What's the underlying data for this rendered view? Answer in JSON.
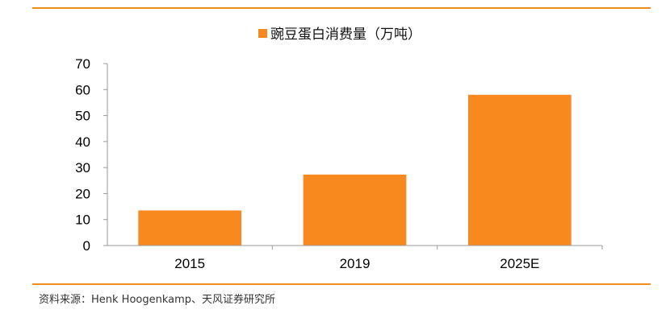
{
  "colors": {
    "accent": "#f28a1e",
    "bar": "#f7891f"
  },
  "source": "资料来源：Henk Hoogenkamp、天风证券研究所",
  "chart_data": {
    "type": "bar",
    "categories": [
      "2015",
      "2019",
      "2025E"
    ],
    "series": [
      {
        "name": "豌豆蛋白消费量（万吨）",
        "values": [
          13.5,
          27.3,
          58
        ]
      }
    ],
    "ylim": [
      0,
      70
    ],
    "yticks": [
      "0",
      "10",
      "20",
      "30",
      "40",
      "50",
      "60",
      "70"
    ],
    "grid": false,
    "legend": "top-center"
  }
}
